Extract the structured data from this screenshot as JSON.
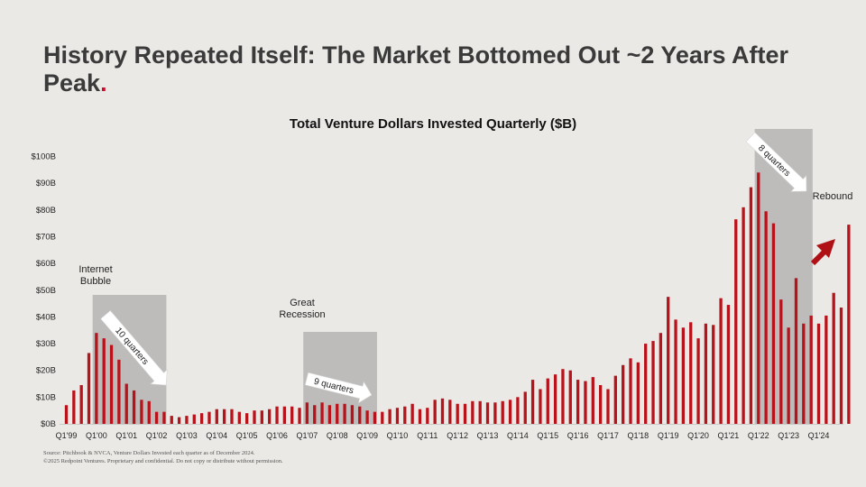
{
  "slide": {
    "title": "History Repeated Itself: The Market Bottomed Out ~2 Years After Peak",
    "title_dot": "."
  },
  "colors": {
    "bar": "#b8121b",
    "shade": "#bdbcba",
    "accent": "#c8102e",
    "text": "#222222"
  },
  "chart_data": {
    "type": "bar",
    "title": "Total Venture Dollars Invested Quarterly ($B)",
    "xlabel": "",
    "ylabel": "",
    "ylim": [
      0,
      100
    ],
    "y_ticks": [
      "$0B",
      "$10B",
      "$20B",
      "$30B",
      "$40B",
      "$50B",
      "$60B",
      "$70B",
      "$80B",
      "$90B",
      "$100B"
    ],
    "x_tick_labels": [
      "Q1'99",
      "Q1'00",
      "Q1'01",
      "Q1'02",
      "Q1'03",
      "Q1'04",
      "Q1'05",
      "Q1'06",
      "Q1'07",
      "Q1'08",
      "Q1'09",
      "Q1'10",
      "Q1'11",
      "Q1'12",
      "Q1'13",
      "Q1'14",
      "Q1'15",
      "Q1'16",
      "Q1'17",
      "Q1'18",
      "Q1'19",
      "Q1'20",
      "Q1'21",
      "Q1'22",
      "Q1'23",
      "Q1'24"
    ],
    "values": [
      7,
      12.5,
      14.5,
      26.5,
      34,
      32,
      29.5,
      24,
      15,
      12.5,
      9,
      8.5,
      4.5,
      4.5,
      3,
      2.5,
      3,
      3.5,
      4,
      4.5,
      5.5,
      5.5,
      5.5,
      4.5,
      4,
      5,
      5,
      5.5,
      6.5,
      6.5,
      6.5,
      6,
      8,
      7,
      8,
      7,
      7.5,
      7.5,
      7,
      6.5,
      5,
      4.5,
      4.5,
      5.5,
      6,
      6.5,
      7.5,
      5.5,
      6,
      9,
      9.5,
      9,
      7.5,
      7.5,
      8.5,
      8.5,
      8,
      8,
      8.5,
      9,
      10,
      12,
      16.5,
      13,
      17,
      18.5,
      20.5,
      20,
      16.5,
      16,
      17.5,
      14.5,
      13,
      18,
      22,
      24.5,
      23,
      30,
      31,
      34,
      47.5,
      39,
      36,
      38,
      32,
      37.5,
      37,
      47,
      44.5,
      76.5,
      81,
      88.5,
      94,
      79.5,
      75,
      46.5,
      36,
      54.5,
      37.5,
      40.5,
      37.5,
      40.5,
      49,
      43.5,
      74.5
    ],
    "annotations": [
      {
        "label": "Internet Bubble",
        "period": "10 quarters",
        "from_index": 4,
        "to_index": 14
      },
      {
        "label": "Great Recession",
        "period": "9 quarters",
        "from_index": 32,
        "to_index": 41
      },
      {
        "label": "",
        "period": "8 quarters",
        "from_index": 92,
        "to_index": 100
      },
      {
        "label": "Rebound",
        "period": "",
        "from_index": 100,
        "to_index": 104
      }
    ]
  },
  "footnote": {
    "source": "Source: Pitchbook & NVCA, Venture Dollars Invested each quarter as of December 2024.",
    "copyright": "©2025 Redpoint Ventures. Proprietary and confidential. Do not copy or distribute without permission."
  }
}
